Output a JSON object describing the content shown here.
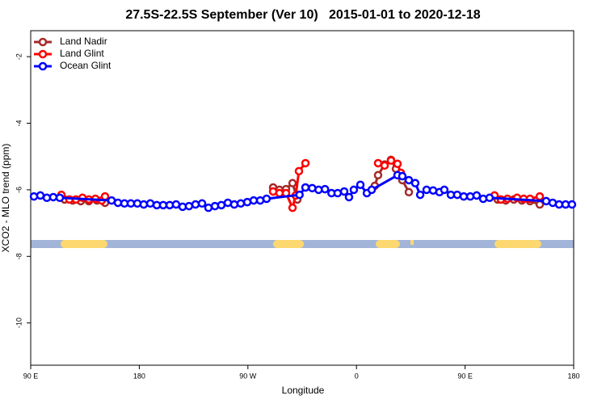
{
  "chart_data": {
    "type": "line",
    "title": "27.5S-22.5S September (Ver 10)   2015-01-01 to 2020-12-18",
    "xlabel": "Longitude",
    "ylabel": "XCO2 - MLO trend (ppm)",
    "xlim": [
      90,
      540
    ],
    "ylim": [
      -11.27,
      -1.22
    ],
    "xticks": [
      {
        "value": 90,
        "label": "90 E"
      },
      {
        "value": 180,
        "label": "180"
      },
      {
        "value": 270,
        "label": "90 W"
      },
      {
        "value": 360,
        "label": "0"
      },
      {
        "value": 450,
        "label": "90 E"
      },
      {
        "value": 540,
        "label": "180"
      }
    ],
    "yticks": [
      -10,
      -8,
      -6,
      -4,
      -2
    ],
    "legend": "top-left",
    "series": [
      {
        "name": "Land Nadir",
        "color": "#a52a2a",
        "x": [
          118.1,
          124.8,
          131.5,
          138.2,
          144.9,
          151.6,
          null,
          290.9,
          296.2,
          301.6,
          307.0,
          311.0,
          null,
          375.2,
          377.9,
          383.3,
          388.6,
          392.7,
          398.0,
          403.4,
          null,
          477.0,
          483.7,
          490.4,
          497.1,
          503.8,
          511.9
        ],
        "values": [
          -6.29,
          -6.32,
          -6.34,
          -6.34,
          -6.32,
          -6.39,
          null,
          -5.93,
          -6.0,
          -5.98,
          -5.8,
          -6.29,
          null,
          -5.88,
          -5.56,
          -5.24,
          -5.1,
          -5.37,
          -5.71,
          -6.07,
          null,
          -6.29,
          -6.32,
          -6.29,
          -6.32,
          -6.34,
          -6.44
        ]
      },
      {
        "name": "Land Glint",
        "color": "#ff0000",
        "x": [
          115.4,
          122.1,
          127.5,
          132.9,
          138.2,
          143.6,
          148.9,
          151.6,
          null,
          290.9,
          296.2,
          301.6,
          307.0,
          309.6,
          312.3,
          317.7,
          null,
          377.9,
          383.3,
          388.6,
          394.0,
          396.7,
          null,
          474.4,
          479.7,
          485.1,
          493.1,
          498.5,
          503.8,
          511.9
        ],
        "values": [
          -6.15,
          -6.29,
          -6.29,
          -6.24,
          -6.29,
          -6.27,
          -6.32,
          -6.2,
          null,
          -6.05,
          -6.1,
          -6.1,
          -6.54,
          -6.17,
          -5.44,
          -5.2,
          null,
          -5.2,
          -5.27,
          -5.12,
          -5.22,
          -5.49,
          null,
          -6.17,
          -6.29,
          -6.27,
          -6.24,
          -6.27,
          -6.27,
          -6.2
        ]
      },
      {
        "name": "Ocean Glint",
        "color": "#0000ff",
        "x": [
          92.7,
          98.0,
          103.4,
          108.7,
          114.1,
          157.0,
          162.3,
          167.7,
          173.0,
          178.4,
          183.7,
          189.1,
          194.5,
          199.8,
          205.2,
          210.5,
          215.9,
          221.2,
          226.6,
          232.0,
          237.3,
          242.7,
          248.0,
          253.4,
          258.7,
          264.1,
          269.5,
          274.8,
          280.2,
          285.5,
          312.8,
          317.7,
          323.3,
          328.6,
          333.9,
          339.3,
          344.4,
          349.8,
          353.8,
          357.8,
          363.2,
          368.6,
          372.6,
          394.0,
          398.0,
          403.4,
          408.7,
          412.8,
          418.1,
          423.5,
          428.8,
          432.8,
          438.2,
          443.5,
          448.9,
          454.3,
          459.6,
          465.0,
          470.3,
          517.2,
          522.6,
          527.9,
          533.3,
          538.6
        ],
        "values": [
          -6.2,
          -6.17,
          -6.24,
          -6.22,
          -6.24,
          -6.32,
          -6.39,
          -6.41,
          -6.41,
          -6.41,
          -6.44,
          -6.41,
          -6.46,
          -6.46,
          -6.46,
          -6.44,
          -6.51,
          -6.49,
          -6.44,
          -6.41,
          -6.54,
          -6.49,
          -6.46,
          -6.39,
          -6.44,
          -6.41,
          -6.37,
          -6.32,
          -6.32,
          -6.27,
          -6.15,
          -5.93,
          -5.95,
          -6.0,
          -5.98,
          -6.1,
          -6.1,
          -6.05,
          -6.22,
          -6.0,
          -5.85,
          -6.1,
          -6.0,
          -5.56,
          -5.59,
          -5.71,
          -5.8,
          -6.15,
          -6.0,
          -6.02,
          -6.07,
          -6.0,
          -6.15,
          -6.15,
          -6.2,
          -6.2,
          -6.17,
          -6.27,
          -6.24,
          -6.34,
          -6.39,
          -6.44,
          -6.44,
          -6.44
        ]
      }
    ]
  }
}
